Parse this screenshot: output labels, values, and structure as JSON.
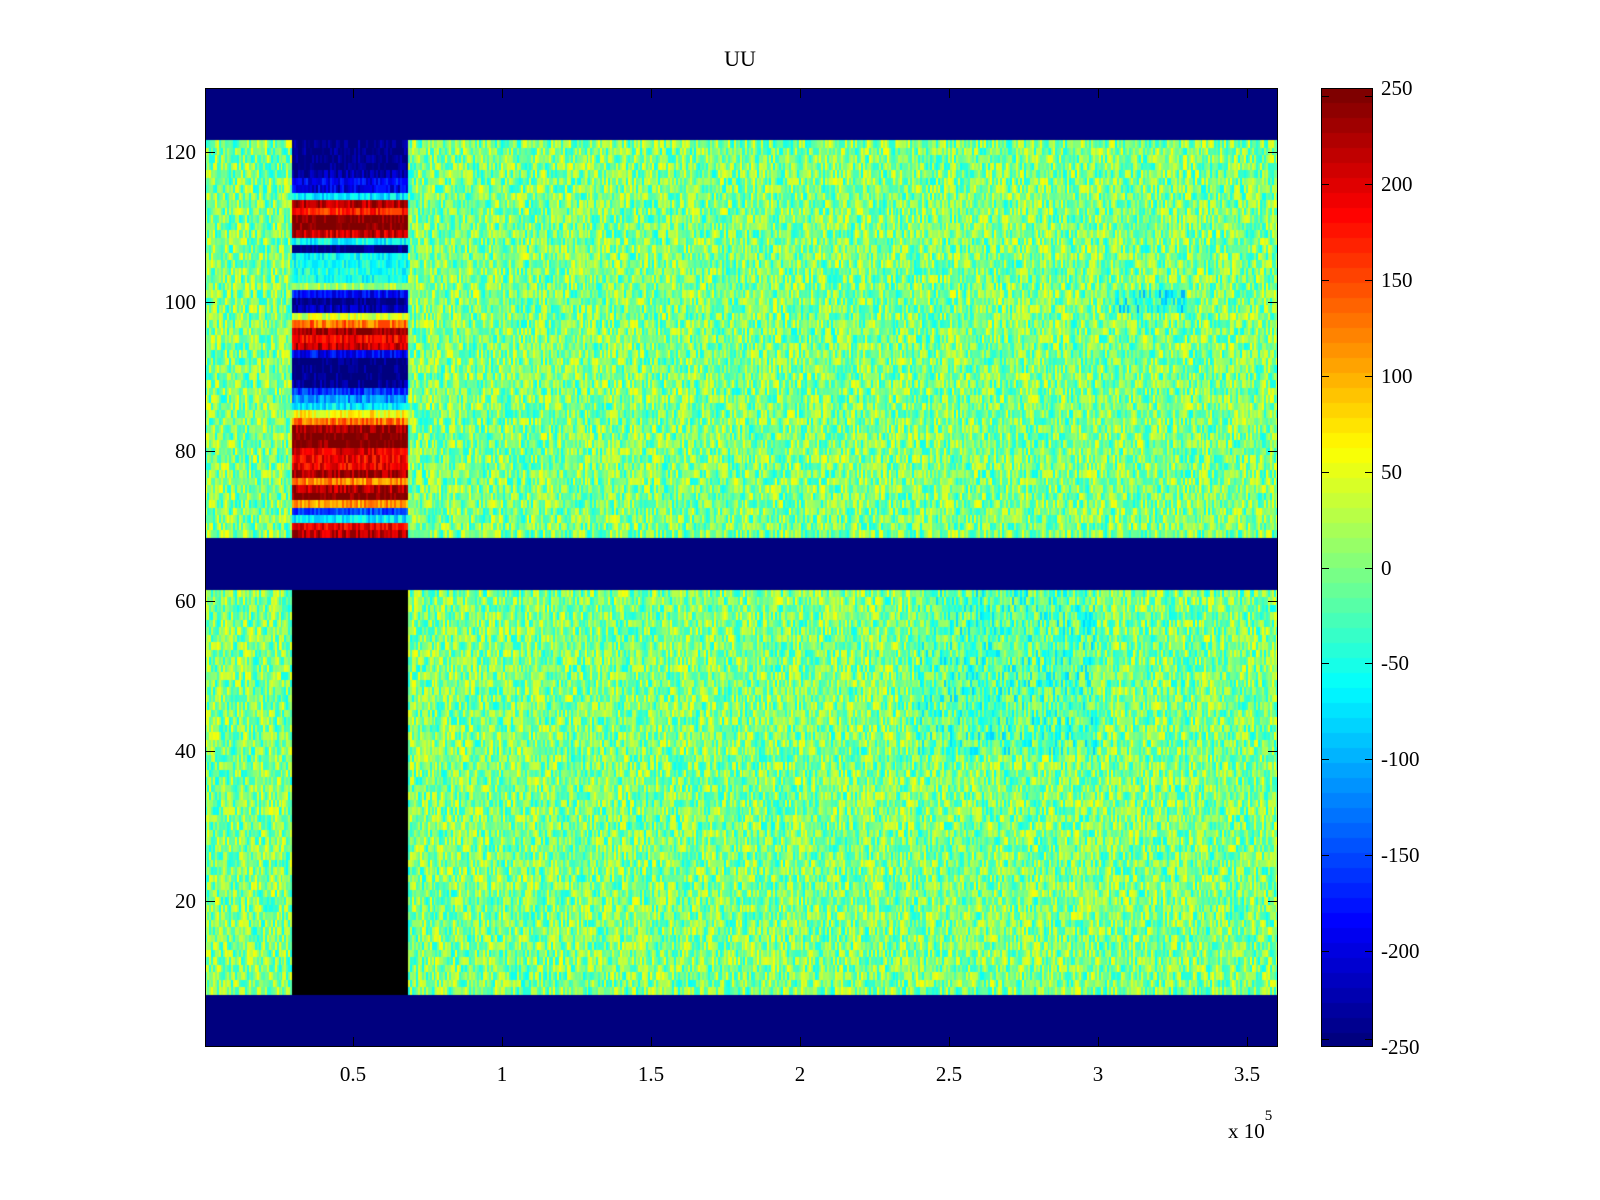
{
  "chart_data": {
    "type": "heatmap",
    "title": "UU",
    "xlabel": "",
    "ylabel": "",
    "x_exponent_label": "x 10",
    "x_exponent": "5",
    "xlim": [
      340,
      360400
    ],
    "ylim": [
      0.5,
      128.5
    ],
    "xticks": [
      0.5,
      1,
      1.5,
      2,
      2.5,
      3,
      3.5
    ],
    "xtick_labels": [
      "0.5",
      "1",
      "1.5",
      "2",
      "2.5",
      "3",
      "3.5"
    ],
    "xtick_scale": 100000,
    "yticks": [
      20,
      40,
      60,
      80,
      100,
      120
    ],
    "ytick_labels": [
      "20",
      "40",
      "60",
      "80",
      "100",
      "120"
    ],
    "colormap": "jet",
    "clim": [
      -250,
      250
    ],
    "colorbar_ticks": [
      250,
      200,
      150,
      100,
      50,
      0,
      -50,
      -100,
      -150,
      -200,
      -250
    ],
    "colorbar_labels": [
      "250",
      "200",
      "150",
      "100",
      "50",
      "0",
      "-50",
      "-100",
      "-150",
      "-200",
      "-250"
    ],
    "rows": 128,
    "background_mean": 0,
    "background_noise_range": [
      -60,
      60
    ],
    "masked_rows": [
      [
        1,
        7
      ],
      [
        62,
        68
      ],
      [
        122,
        128
      ]
    ],
    "masked_value": -250,
    "anomaly_block": {
      "x_range": [
        29500,
        68500
      ],
      "row_top": 121,
      "row_values_top_to_bottom": [
        -250,
        -250,
        -250,
        -250,
        -230,
        -190,
        -200,
        -70,
        220,
        170,
        250,
        250,
        210,
        -60,
        -250,
        -60,
        -50,
        -45,
        -50,
        20,
        -180,
        -240,
        -220,
        40,
        130,
        230,
        190,
        210,
        -190,
        -250,
        -250,
        -250,
        -240,
        -160,
        -110,
        -70,
        60,
        130,
        230,
        250,
        250,
        200,
        190,
        190,
        230,
        120,
        220,
        250,
        110,
        -150,
        -70,
        190,
        220
      ]
    },
    "cool_patches": [
      {
        "x_range": [
          240000,
          300000
        ],
        "rows": [
          40,
          61
        ],
        "offset": -20
      },
      {
        "x_range": [
          305000,
          330000
        ],
        "rows": [
          99,
          101
        ],
        "offset": -40
      }
    ]
  }
}
